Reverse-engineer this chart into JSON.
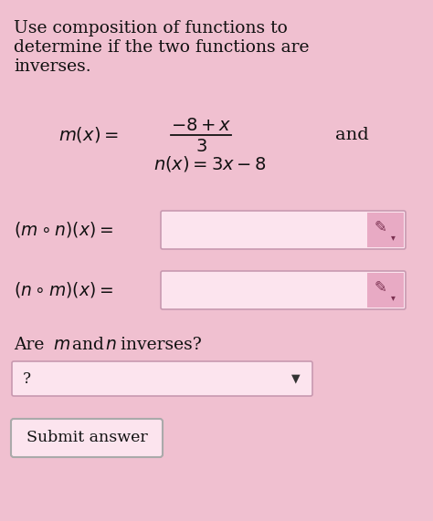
{
  "bg_color": "#f0c0d0",
  "title_lines": [
    "Use composition of functions to",
    "determine if the two functions are",
    "inverses."
  ],
  "title_fontsize": 13.5,
  "submit_text": "Submit answer",
  "box_border_color": "#c899b0",
  "input_box_color": "#fce4ee",
  "pencil_bg": "#e8aac4"
}
